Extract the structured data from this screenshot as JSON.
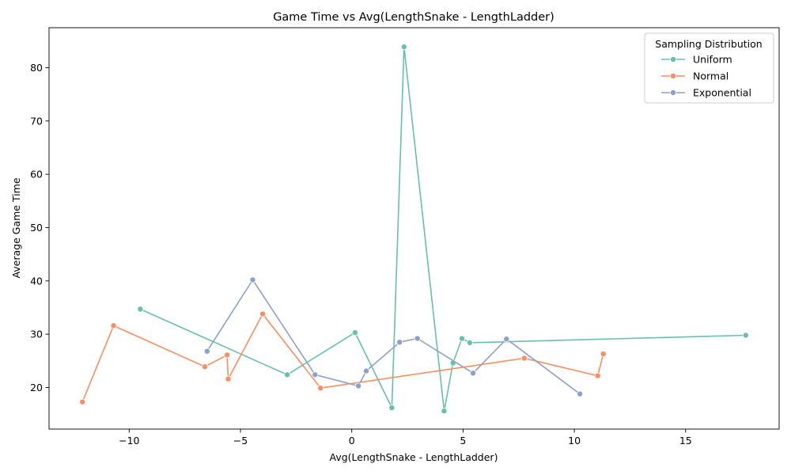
{
  "chart_data": {
    "type": "line",
    "title": "Game Time vs Avg(LengthSnake - LengthLadder)",
    "xlabel": "Avg(LengthSnake - LengthLadder)",
    "ylabel": "Average Game Time",
    "xlim": [
      -13.6,
      19.2
    ],
    "ylim": [
      12.2,
      87.5
    ],
    "xticks": [
      -10,
      -5,
      0,
      5,
      10,
      15
    ],
    "xtick_labels": [
      "−10",
      "−5",
      "0",
      "5",
      "10",
      "15"
    ],
    "yticks": [
      20,
      30,
      40,
      50,
      60,
      70,
      80
    ],
    "ytick_labels": [
      "20",
      "30",
      "40",
      "50",
      "60",
      "70",
      "80"
    ],
    "grid": false,
    "legend": {
      "title": "Sampling Distribution",
      "position": "top-right"
    },
    "markers": true,
    "series": [
      {
        "name": "Uniform",
        "color": "#66c2a5",
        "points": [
          [
            -9.5,
            34.7
          ],
          [
            -2.9,
            22.4
          ],
          [
            0.15,
            30.3
          ],
          [
            1.8,
            16.2
          ],
          [
            2.35,
            83.9
          ],
          [
            4.15,
            15.6
          ],
          [
            4.55,
            24.6
          ],
          [
            4.95,
            29.2
          ],
          [
            5.3,
            28.4
          ],
          [
            17.7,
            29.8
          ]
        ]
      },
      {
        "name": "Normal",
        "color": "#fc8d62",
        "points": [
          [
            -12.1,
            17.3
          ],
          [
            -10.7,
            31.6
          ],
          [
            -6.6,
            23.9
          ],
          [
            -5.6,
            26.1
          ],
          [
            -5.55,
            21.6
          ],
          [
            -4.0,
            33.8
          ],
          [
            -1.4,
            19.9
          ],
          [
            7.75,
            25.5
          ],
          [
            11.05,
            22.2
          ],
          [
            11.3,
            26.3
          ]
        ]
      },
      {
        "name": "Exponential",
        "color": "#8da0cb",
        "points": [
          [
            -6.5,
            26.8
          ],
          [
            -4.45,
            40.2
          ],
          [
            -1.65,
            22.4
          ],
          [
            0.3,
            20.3
          ],
          [
            0.65,
            23.1
          ],
          [
            2.15,
            28.5
          ],
          [
            2.95,
            29.2
          ],
          [
            5.45,
            22.7
          ],
          [
            6.95,
            29.1
          ],
          [
            10.25,
            18.8
          ]
        ]
      }
    ]
  }
}
